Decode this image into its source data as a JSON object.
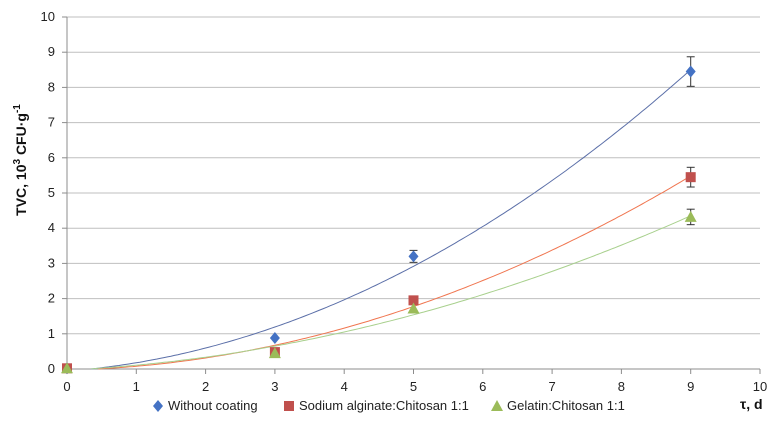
{
  "chart_data": {
    "type": "scatter",
    "xlabel": "τ, d",
    "ylabel": "TVC, 10",
    "ylabel_sup": "3",
    "ylabel_rest": " CFU·g",
    "ylabel_sup2": "-1",
    "xlim": [
      0,
      10
    ],
    "ylim": [
      0,
      10
    ],
    "xticks": [
      "0",
      "1",
      "2",
      "3",
      "4",
      "5",
      "6",
      "7",
      "8",
      "9",
      "10"
    ],
    "yticks": [
      "0",
      "1",
      "2",
      "3",
      "4",
      "5",
      "6",
      "7",
      "8",
      "9",
      "10"
    ],
    "grid": "horizontal",
    "legend_position": "bottom",
    "series": [
      {
        "name": "Without coating",
        "marker": "diamond",
        "color": "#4472C4",
        "trend_color": "#5B6FA8",
        "x": [
          0,
          3,
          5,
          9
        ],
        "y": [
          0.02,
          0.88,
          3.2,
          8.45
        ],
        "err": [
          0,
          0,
          0.17,
          0.42
        ],
        "trend": [
          0.0,
          0.92,
          1.24,
          2.0,
          2.95,
          4.05,
          5.25,
          6.6,
          8.4
        ]
      },
      {
        "name": "Sodium alginate:Chitosan 1:1",
        "marker": "square",
        "color": "#C0504D",
        "trend_color": "#F0754F",
        "x": [
          0,
          3,
          5,
          9
        ],
        "y": [
          0.02,
          0.48,
          1.95,
          5.45
        ],
        "err": [
          0,
          0,
          0,
          0.28
        ],
        "trend": [
          0.0,
          0.65,
          1.15,
          1.8,
          2.55,
          3.35,
          4.4,
          5.45
        ]
      },
      {
        "name": "Gelatin:Chitosan 1:1",
        "marker": "triangle",
        "color": "#9BBB59",
        "trend_color": "#A8D08D",
        "x": [
          0,
          3,
          5,
          9
        ],
        "y": [
          0.02,
          0.45,
          1.72,
          4.32
        ],
        "err": [
          0,
          0,
          0,
          0.22
        ],
        "trend": [
          0.0,
          0.65,
          1.55,
          4.35
        ]
      }
    ]
  }
}
